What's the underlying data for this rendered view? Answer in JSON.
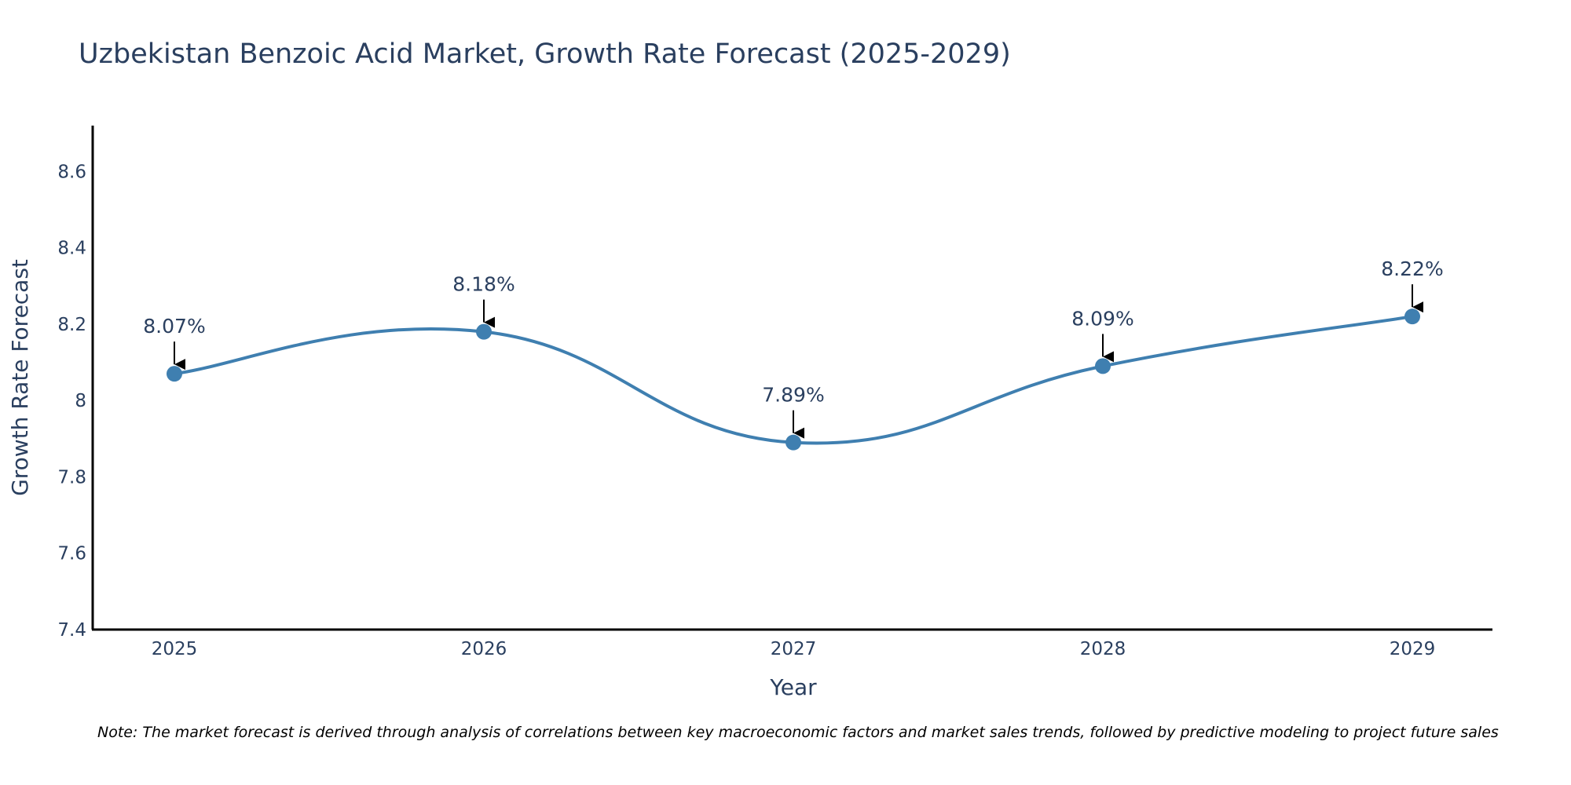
{
  "chart_data": {
    "type": "line",
    "title": "Uzbekistan Benzoic Acid Market, Growth Rate Forecast (2025-2029)",
    "xlabel": "Year",
    "ylabel": "Growth Rate Forecast",
    "categories": [
      "2025",
      "2026",
      "2027",
      "2028",
      "2029"
    ],
    "series": [
      {
        "name": "Growth Rate Forecast",
        "values": [
          8.07,
          8.18,
          7.89,
          8.09,
          8.22
        ],
        "labels": [
          "8.07%",
          "8.18%",
          "7.89%",
          "8.09%",
          "8.22%"
        ],
        "color": "#3f7fb0"
      }
    ],
    "ylim": [
      7.4,
      8.72
    ],
    "yticks": [
      7.4,
      7.6,
      7.8,
      8,
      8.2,
      8.4,
      8.6
    ],
    "ytick_labels": [
      "7.4",
      "7.6",
      "7.8",
      "8",
      "8.2",
      "8.4",
      "8.6"
    ],
    "grid": false,
    "legend": "none",
    "line_shape": "spline",
    "marker": "circle",
    "axis_color": "#000000",
    "annotation_color": "#000000",
    "note": "Note: The market forecast is derived through analysis of correlations between key macroeconomic factors and market sales trends, followed by predictive modeling to project future sales"
  }
}
